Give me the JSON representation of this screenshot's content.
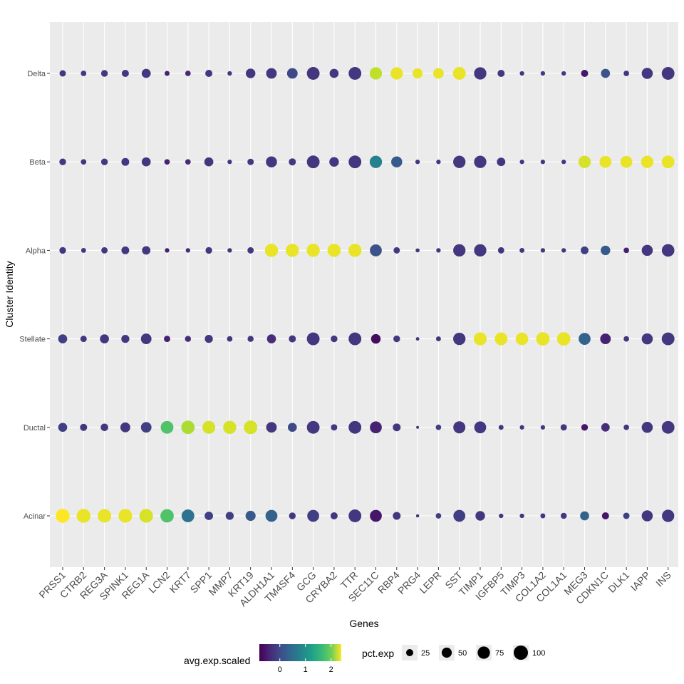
{
  "chart_data": {
    "type": "scatter",
    "subtype": "dot-plot",
    "xlabel": "Genes",
    "ylabel": "Cluster Identity",
    "genes": [
      "PRSS1",
      "CTRB2",
      "REG3A",
      "SPINK1",
      "REG1A",
      "LCN2",
      "KRT7",
      "SPP1",
      "MMP7",
      "KRT19",
      "ALDH1A1",
      "TM4SF4",
      "GCG",
      "CRYBA2",
      "TTR",
      "SEC11C",
      "RBP4",
      "PRG4",
      "LEPR",
      "SST",
      "TIMP1",
      "IGFBP5",
      "TIMP3",
      "COL1A2",
      "COL1A1",
      "MEG3",
      "CDKN1C",
      "DLK1",
      "IAPP",
      "INS"
    ],
    "clusters": [
      "Acinar",
      "Ductal",
      "Stellate",
      "Alpha",
      "Beta",
      "Delta"
    ],
    "pct_exp": {
      "Acinar": [
        95,
        95,
        90,
        92,
        92,
        88,
        80,
        35,
        32,
        50,
        70,
        22,
        70,
        25,
        80,
        70,
        30,
        5,
        15,
        70,
        45,
        10,
        10,
        12,
        18,
        40,
        25,
        20,
        60,
        75
      ],
      "Ductal": [
        40,
        25,
        28,
        48,
        55,
        80,
        88,
        82,
        85,
        90,
        55,
        40,
        80,
        20,
        80,
        70,
        30,
        4,
        15,
        72,
        70,
        12,
        10,
        10,
        20,
        22,
        35,
        15,
        60,
        80
      ],
      "Stellate": [
        40,
        20,
        40,
        32,
        55,
        20,
        18,
        32,
        15,
        18,
        40,
        25,
        80,
        22,
        80,
        45,
        22,
        6,
        12,
        75,
        82,
        80,
        78,
        88,
        88,
        70,
        55,
        15,
        60,
        80
      ],
      "Alpha": [
        22,
        12,
        20,
        30,
        35,
        10,
        10,
        22,
        10,
        20,
        85,
        85,
        85,
        85,
        85,
        70,
        20,
        8,
        10,
        75,
        75,
        20,
        12,
        10,
        10,
        30,
        45,
        15,
        60,
        78
      ],
      "Beta": [
        22,
        15,
        22,
        30,
        40,
        15,
        15,
        40,
        10,
        20,
        60,
        25,
        80,
        45,
        80,
        75,
        60,
        10,
        10,
        75,
        75,
        35,
        10,
        10,
        10,
        75,
        70,
        70,
        75,
        80
      ],
      "Delta": [
        20,
        15,
        22,
        25,
        40,
        12,
        15,
        25,
        10,
        45,
        55,
        55,
        80,
        40,
        80,
        75,
        75,
        50,
        55,
        80,
        75,
        25,
        10,
        10,
        10,
        25,
        40,
        15,
        60,
        80
      ]
    },
    "avg_exp_scaled": {
      "Acinar": [
        2.4,
        2.3,
        2.3,
        2.3,
        2.2,
        1.5,
        0.4,
        -0.2,
        -0.2,
        0.1,
        0.2,
        -0.3,
        -0.2,
        -0.3,
        -0.3,
        -0.6,
        -0.3,
        -0.3,
        -0.2,
        -0.2,
        -0.3,
        -0.3,
        -0.3,
        -0.3,
        -0.3,
        0.2,
        -0.6,
        -0.2,
        -0.3,
        -0.3
      ],
      "Ductal": [
        -0.2,
        -0.3,
        -0.3,
        -0.3,
        -0.2,
        1.5,
        2.0,
        2.2,
        2.2,
        2.2,
        -0.3,
        -0.1,
        -0.3,
        -0.3,
        -0.3,
        -0.5,
        -0.3,
        -0.3,
        -0.2,
        -0.3,
        -0.3,
        -0.3,
        -0.3,
        -0.3,
        -0.3,
        -0.6,
        -0.4,
        -0.3,
        -0.3,
        -0.3
      ],
      "Stellate": [
        -0.2,
        -0.3,
        -0.3,
        -0.3,
        -0.3,
        -0.5,
        -0.4,
        -0.3,
        -0.3,
        -0.3,
        -0.4,
        -0.3,
        -0.3,
        -0.3,
        -0.3,
        -0.7,
        -0.3,
        -0.3,
        -0.3,
        -0.3,
        2.3,
        2.3,
        2.3,
        2.3,
        2.3,
        0.2,
        -0.5,
        -0.3,
        -0.3,
        -0.3
      ],
      "Alpha": [
        -0.3,
        -0.3,
        -0.3,
        -0.3,
        -0.3,
        -0.5,
        -0.4,
        -0.3,
        -0.3,
        -0.3,
        2.3,
        2.3,
        2.3,
        2.3,
        2.3,
        0.0,
        -0.3,
        -0.3,
        -0.3,
        -0.3,
        -0.3,
        -0.3,
        -0.3,
        -0.3,
        -0.3,
        -0.2,
        0.1,
        -0.5,
        -0.3,
        -0.3
      ],
      "Beta": [
        -0.3,
        -0.3,
        -0.3,
        -0.3,
        -0.3,
        -0.5,
        -0.4,
        -0.3,
        -0.3,
        -0.3,
        -0.3,
        -0.3,
        -0.3,
        -0.3,
        -0.3,
        0.6,
        0.1,
        -0.3,
        -0.3,
        -0.3,
        -0.3,
        -0.3,
        -0.3,
        -0.3,
        -0.3,
        2.2,
        2.3,
        2.3,
        2.3,
        2.3
      ],
      "Delta": [
        -0.3,
        -0.3,
        -0.3,
        -0.3,
        -0.3,
        -0.5,
        -0.4,
        -0.3,
        -0.3,
        -0.3,
        -0.3,
        -0.1,
        -0.3,
        -0.3,
        -0.3,
        2.1,
        2.3,
        2.3,
        2.3,
        2.3,
        -0.3,
        -0.3,
        -0.3,
        -0.3,
        -0.3,
        -0.6,
        0.0,
        -0.3,
        -0.3,
        -0.3
      ]
    },
    "color_scale": {
      "title": "avg.exp.scaled",
      "type": "viridis",
      "min": -0.8,
      "max": 2.4,
      "ticks": [
        "0",
        "1",
        "2"
      ],
      "tick_values": [
        0,
        1,
        2
      ]
    },
    "size_scale": {
      "title": "pct.exp",
      "ticks": [
        "25",
        "50",
        "75",
        "100"
      ],
      "tick_values": [
        25,
        50,
        75,
        100
      ],
      "max": 100
    },
    "grid": true,
    "legend_position": "bottom"
  }
}
